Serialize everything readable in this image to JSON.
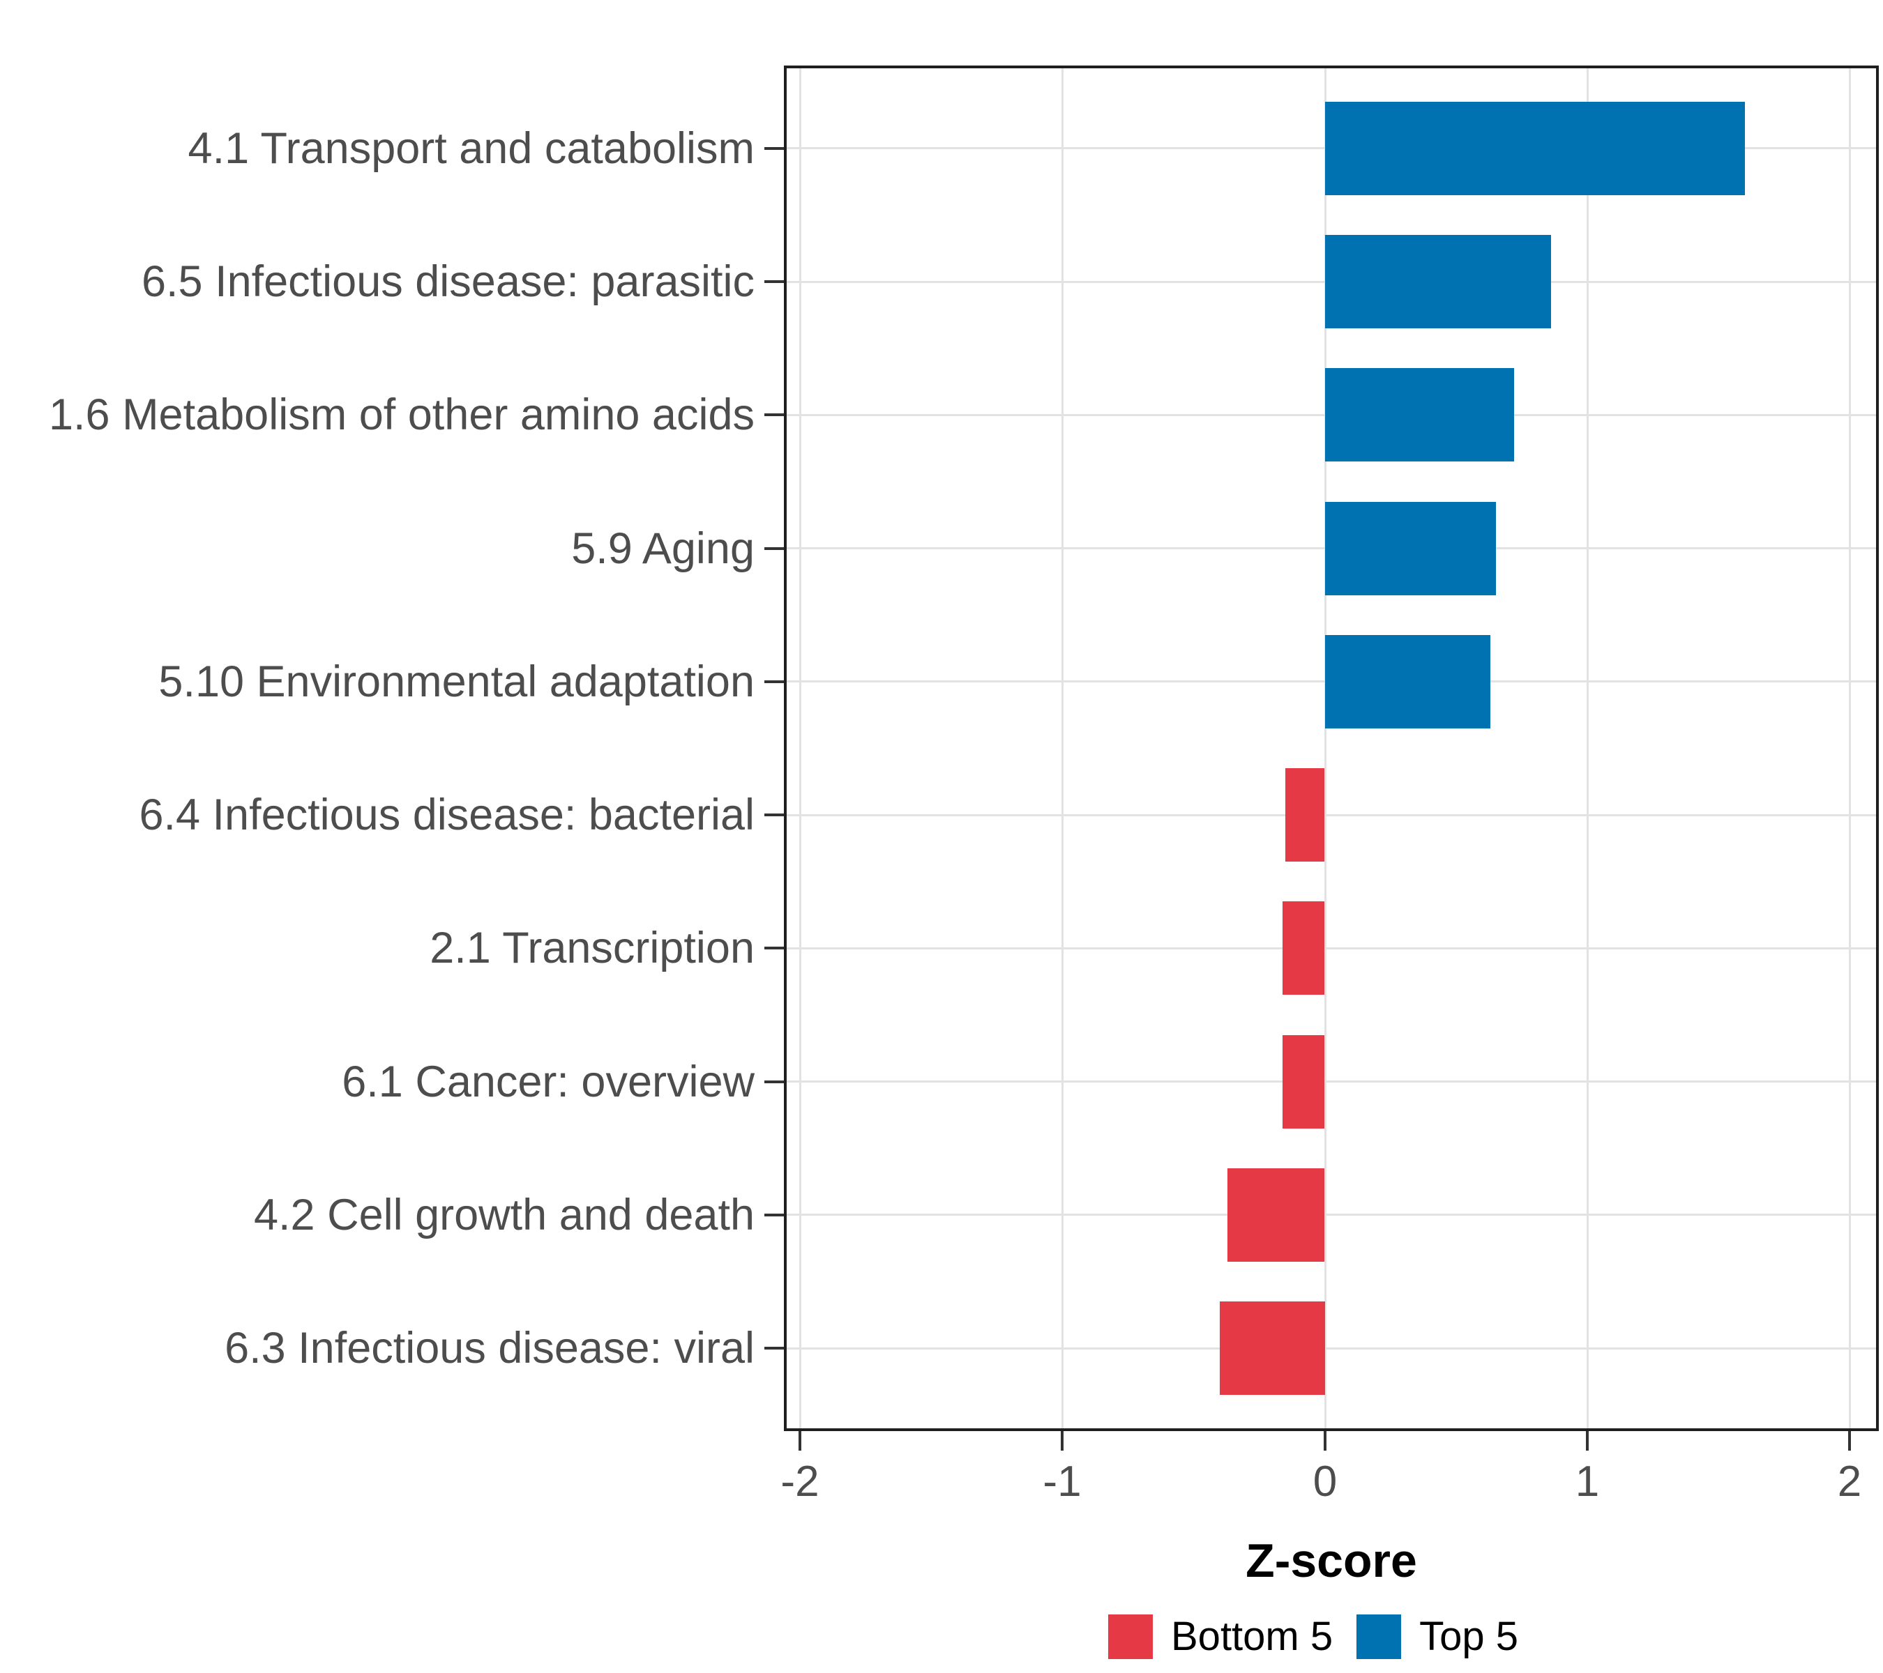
{
  "figure": {
    "background": "#ffffff",
    "text_color": "#4d4d4d"
  },
  "chart_data": {
    "type": "bar",
    "orientation": "horizontal",
    "title": "",
    "xlabel": "Z-score",
    "ylabel": "",
    "grid": "major-only",
    "legend_position": "bottom-center",
    "xlim": [
      -2.05,
      2.1
    ],
    "x_ticks": [
      -2,
      -1,
      0,
      1,
      2
    ],
    "x_tick_labels": [
      "-2",
      "-1",
      "0",
      "1",
      "2"
    ],
    "categories": [
      "4.1 Transport and catabolism",
      "6.5 Infectious disease: parasitic",
      "1.6 Metabolism of other amino acids",
      "5.9 Aging",
      "5.10 Environmental adaptation",
      "6.4 Infectious disease: bacterial",
      "2.1 Transcription",
      "6.1 Cancer: overview",
      "4.2 Cell growth and death",
      "6.3 Infectious disease: viral"
    ],
    "values": [
      1.6,
      0.86,
      0.72,
      0.65,
      0.63,
      -0.15,
      -0.16,
      -0.16,
      -0.37,
      -0.4
    ],
    "groups": [
      "Top 5",
      "Top 5",
      "Top 5",
      "Top 5",
      "Top 5",
      "Bottom 5",
      "Bottom 5",
      "Bottom 5",
      "Bottom 5",
      "Bottom 5"
    ],
    "colors": {
      "Top 5": "#0072B2",
      "Bottom 5": "#E63946"
    },
    "legend": {
      "entries": [
        {
          "label": "Bottom 5",
          "color": "#E63946"
        },
        {
          "label": "Top 5",
          "color": "#0072B2"
        }
      ]
    }
  }
}
